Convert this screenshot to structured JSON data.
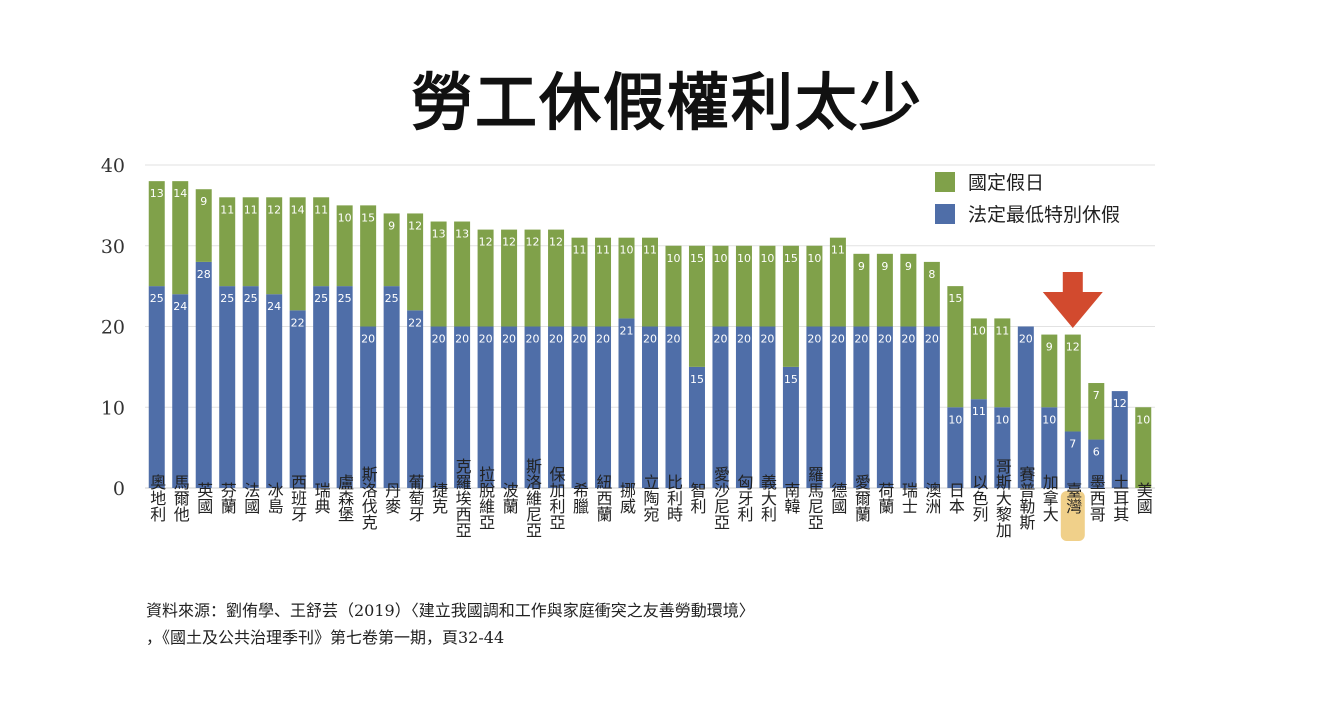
{
  "chart_data": {
    "type": "bar",
    "stacked": true,
    "title": "勞工休假權利太少",
    "ylim": [
      0,
      40
    ],
    "yticks": [
      0,
      10,
      20,
      30,
      40
    ],
    "grid": true,
    "legend_position": "top-right",
    "categories": [
      "奧地利",
      "馬爾他",
      "英國",
      "芬蘭",
      "法國",
      "冰島",
      "西班牙",
      "瑞典",
      "盧森堡",
      "斯洛伐克",
      "丹麥",
      "葡萄牙",
      "捷克",
      "克羅埃西亞",
      "拉脫維亞",
      "波蘭",
      "斯洛維尼亞",
      "保加利亞",
      "希臘",
      "紐西蘭",
      "挪威",
      "立陶宛",
      "比利時",
      "智利",
      "愛沙尼亞",
      "匈牙利",
      "義大利",
      "南韓",
      "羅馬尼亞",
      "德國",
      "愛爾蘭",
      "荷蘭",
      "瑞士",
      "澳洲",
      "日本",
      "以色列",
      "哥斯大黎加",
      "賽普勒斯",
      "加拿大",
      "臺灣",
      "墨西哥",
      "土耳其",
      "美國"
    ],
    "series": [
      {
        "name": "法定最低特別休假",
        "color": "#4f6ea8",
        "values": [
          25,
          24,
          28,
          25,
          25,
          24,
          22,
          25,
          25,
          20,
          25,
          22,
          20,
          20,
          20,
          20,
          20,
          20,
          20,
          20,
          21,
          20,
          20,
          15,
          20,
          20,
          20,
          15,
          20,
          20,
          20,
          20,
          20,
          20,
          10,
          11,
          10,
          20,
          10,
          7,
          6,
          12,
          0
        ]
      },
      {
        "name": "國定假日",
        "color": "#80a14a",
        "values": [
          13,
          14,
          9,
          11,
          11,
          12,
          14,
          11,
          10,
          15,
          9,
          12,
          13,
          13,
          12,
          12,
          12,
          12,
          11,
          11,
          10,
          11,
          10,
          15,
          10,
          10,
          10,
          15,
          10,
          11,
          9,
          9,
          9,
          8,
          15,
          10,
          11,
          0,
          9,
          12,
          7,
          0,
          10
        ]
      }
    ],
    "segment_labels": {
      "bottom": [
        "25",
        "24",
        "28",
        "25",
        "25",
        "24",
        "22",
        "25",
        "25",
        "20",
        "25",
        "22",
        "20",
        "20",
        "20",
        "20",
        "20",
        "20",
        "20",
        "20",
        "21",
        "20",
        "20",
        "15",
        "20",
        "20",
        "20",
        "15",
        "20",
        "20",
        "20",
        "20",
        "20",
        "20",
        "10",
        "11",
        "10",
        "20",
        "10",
        "7",
        "6",
        "12",
        ""
      ],
      "top": [
        "13",
        "14",
        "9",
        "11",
        "11",
        "12",
        "14",
        "11",
        "10",
        "15",
        "9",
        "12",
        "13",
        "13",
        "12",
        "12",
        "12",
        "12",
        "11",
        "11",
        "10",
        "11",
        "10",
        "15",
        "10",
        "10",
        "10",
        "15",
        "10",
        "11",
        "9",
        "9",
        "9",
        "8",
        "15",
        "10",
        "11",
        "",
        "9",
        "12",
        "7",
        "",
        "10"
      ]
    },
    "highlight_category": "臺灣",
    "highlight_color": "#f0d08a",
    "arrow_color": "#d24a2e"
  },
  "source": {
    "line1": "資料來源：劉侑學、王舒芸（2019）〈建立我國調和工作與家庭衝突之友善勞動環境〉",
    "line2": "，《國土及公共治理季刊》第七卷第一期，頁32-44"
  }
}
